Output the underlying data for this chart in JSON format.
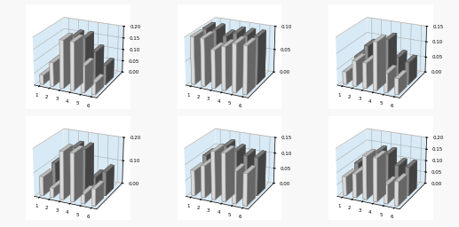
{
  "subplots": [
    {
      "ylim": [
        0,
        0.2
      ],
      "yticks": [
        0.0,
        0.05,
        0.1,
        0.15,
        0.2
      ],
      "series_front": [
        0.04,
        0.1,
        0.2,
        0.2,
        0.11,
        0.05
      ],
      "series_back": [
        0.06,
        0.13,
        0.18,
        0.18,
        0.13,
        0.08
      ]
    },
    {
      "ylim": [
        0,
        0.1
      ],
      "yticks": [
        0.0,
        0.05,
        0.1
      ],
      "series_front": [
        0.1,
        0.1,
        0.08,
        0.09,
        0.1,
        0.1
      ],
      "series_back": [
        0.1,
        0.1,
        0.09,
        0.1,
        0.1,
        0.1
      ]
    },
    {
      "ylim": [
        0,
        0.15
      ],
      "yticks": [
        0.0,
        0.05,
        0.1,
        0.15
      ],
      "series_front": [
        0.04,
        0.08,
        0.08,
        0.15,
        0.06,
        0.05
      ],
      "series_back": [
        0.06,
        0.1,
        0.1,
        0.13,
        0.08,
        0.07
      ]
    },
    {
      "ylim": [
        0,
        0.2
      ],
      "yticks": [
        0.0,
        0.1,
        0.2
      ],
      "series_front": [
        0.08,
        0.04,
        0.2,
        0.2,
        0.04,
        0.07
      ],
      "series_back": [
        0.1,
        0.06,
        0.18,
        0.18,
        0.07,
        0.1
      ]
    },
    {
      "ylim": [
        0,
        0.15
      ],
      "yticks": [
        0.0,
        0.05,
        0.1,
        0.15
      ],
      "series_front": [
        0.08,
        0.1,
        0.15,
        0.15,
        0.1,
        0.1
      ],
      "series_back": [
        0.1,
        0.12,
        0.14,
        0.13,
        0.12,
        0.12
      ]
    },
    {
      "ylim": [
        0,
        0.2
      ],
      "yticks": [
        0.0,
        0.05,
        0.1,
        0.15,
        0.2
      ],
      "series_front": [
        0.08,
        0.1,
        0.18,
        0.18,
        0.08,
        0.1
      ],
      "series_back": [
        0.1,
        0.13,
        0.16,
        0.16,
        0.12,
        0.12
      ]
    }
  ],
  "color_front": "#f5f5f5",
  "color_back": "#a0a0a0",
  "color_front_dark": "#d8d8d8",
  "color_back_dark": "#606060",
  "bg_color": "#d8eaf5",
  "x_labels": [
    "1",
    "2",
    "3",
    "4",
    "5",
    "6"
  ],
  "figsize": [
    5.17,
    2.56
  ],
  "dpi": 100
}
